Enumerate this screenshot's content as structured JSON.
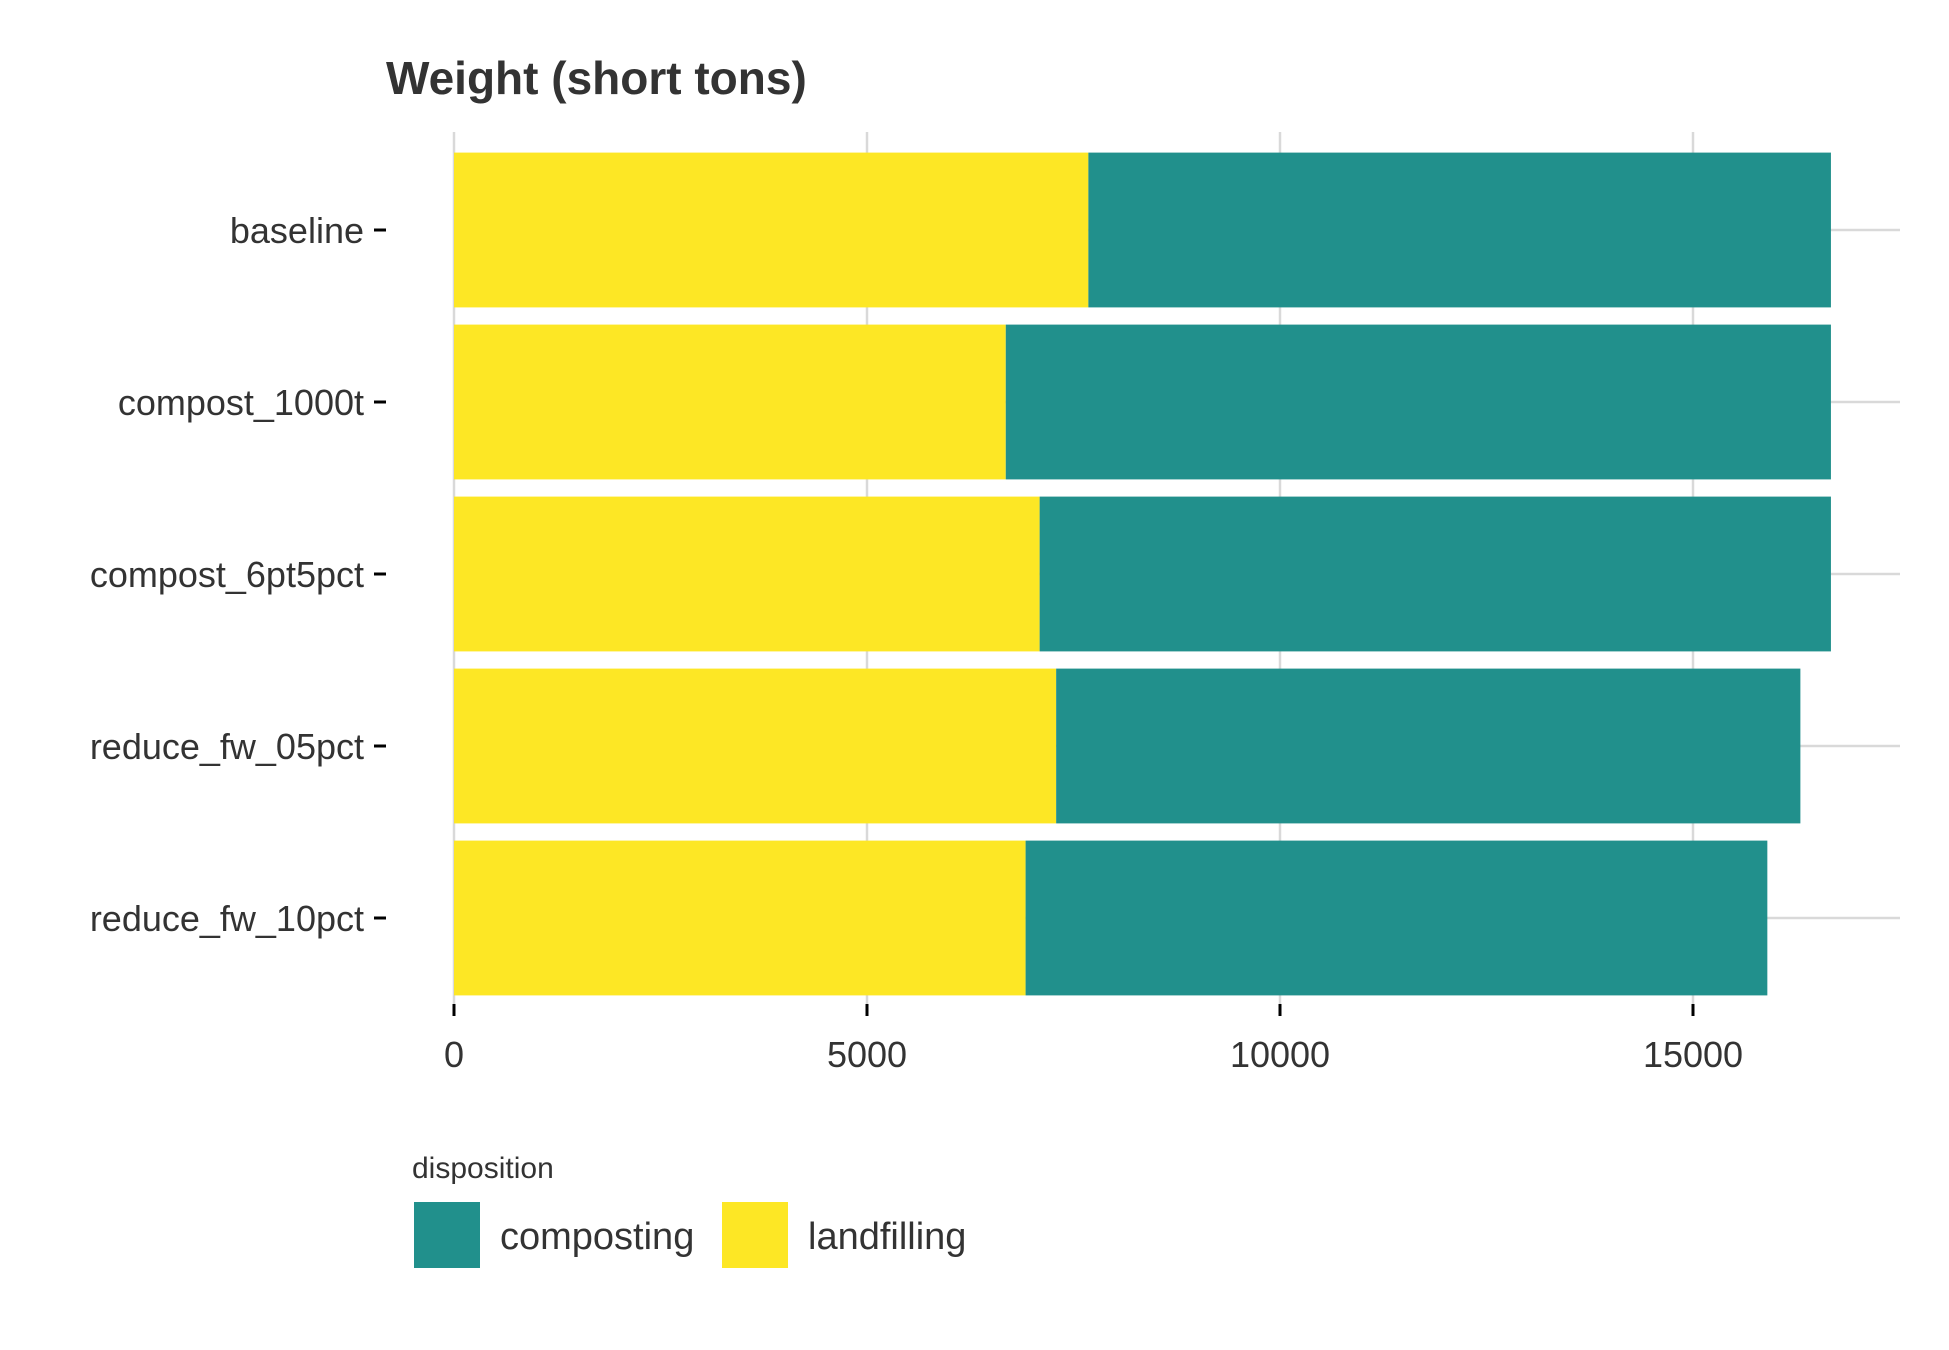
{
  "chart_data": {
    "type": "bar",
    "orientation": "horizontal",
    "stacked": true,
    "title": "Weight (short tons)",
    "xlabel": "",
    "ylabel": "",
    "categories": [
      "baseline",
      "compost_1000t",
      "compost_6pt5pct",
      "reduce_fw_05pct",
      "reduce_fw_10pct"
    ],
    "series": [
      {
        "name": "landfilling",
        "color": "#FDE725",
        "values": [
          7680,
          6680,
          7090,
          7290,
          6920
        ]
      },
      {
        "name": "composting",
        "color": "#21908C",
        "values": [
          8990,
          9990,
          9580,
          9010,
          8980
        ]
      }
    ],
    "xlim": [
      0,
      17500
    ],
    "xticks": [
      0,
      5000,
      10000,
      15000
    ],
    "xtick_labels": [
      "0",
      "5000",
      "10000",
      "15000"
    ],
    "grid": true,
    "legend": {
      "title": "disposition",
      "placement": "bottom-left",
      "entries": [
        "composting",
        "landfilling"
      ]
    }
  }
}
